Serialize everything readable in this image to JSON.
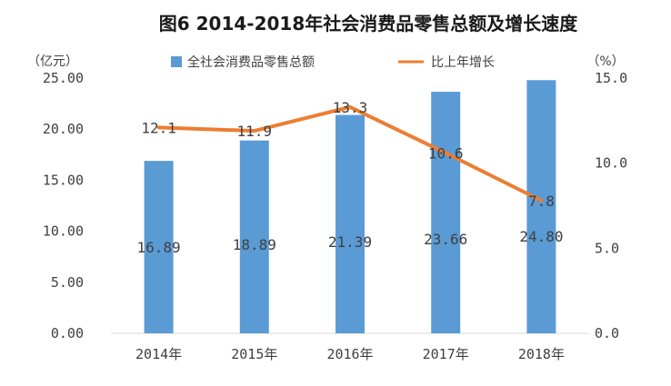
{
  "chart_data": {
    "type": "bar",
    "title": "图6  2014-2018年社会消费品零售总额及增长速度",
    "categories": [
      "2014年",
      "2015年",
      "2016年",
      "2017年",
      "2018年"
    ],
    "y_left": {
      "unit_label": "（亿元）",
      "ylim": [
        0,
        25
      ],
      "ticks": [
        "0.00",
        "5.00",
        "10.00",
        "15.00",
        "20.00",
        "25.00"
      ],
      "tick_values": [
        0,
        5,
        10,
        15,
        20,
        25
      ]
    },
    "y_right": {
      "unit_label": "（%）",
      "ylim": [
        0,
        15
      ],
      "ticks": [
        "0.0",
        "5.0",
        "10.0",
        "15.0"
      ],
      "tick_values": [
        0,
        5,
        10,
        15
      ]
    },
    "series": [
      {
        "name": "全社会消费品零售总额",
        "type": "bar",
        "axis": "left",
        "color": "#5b9bd5",
        "values": [
          16.89,
          18.89,
          21.39,
          23.66,
          24.8
        ],
        "labels": [
          "16.89",
          "18.89",
          "21.39",
          "23.66",
          "24.80"
        ]
      },
      {
        "name": "比上年增长",
        "type": "line",
        "axis": "right",
        "color": "#ed7d31",
        "values": [
          12.1,
          11.9,
          13.3,
          10.6,
          7.8
        ],
        "labels": [
          "12.1",
          "11.9",
          "13.3",
          "10.6",
          "7.8"
        ]
      }
    ],
    "legend": "top-center",
    "grid": false
  }
}
